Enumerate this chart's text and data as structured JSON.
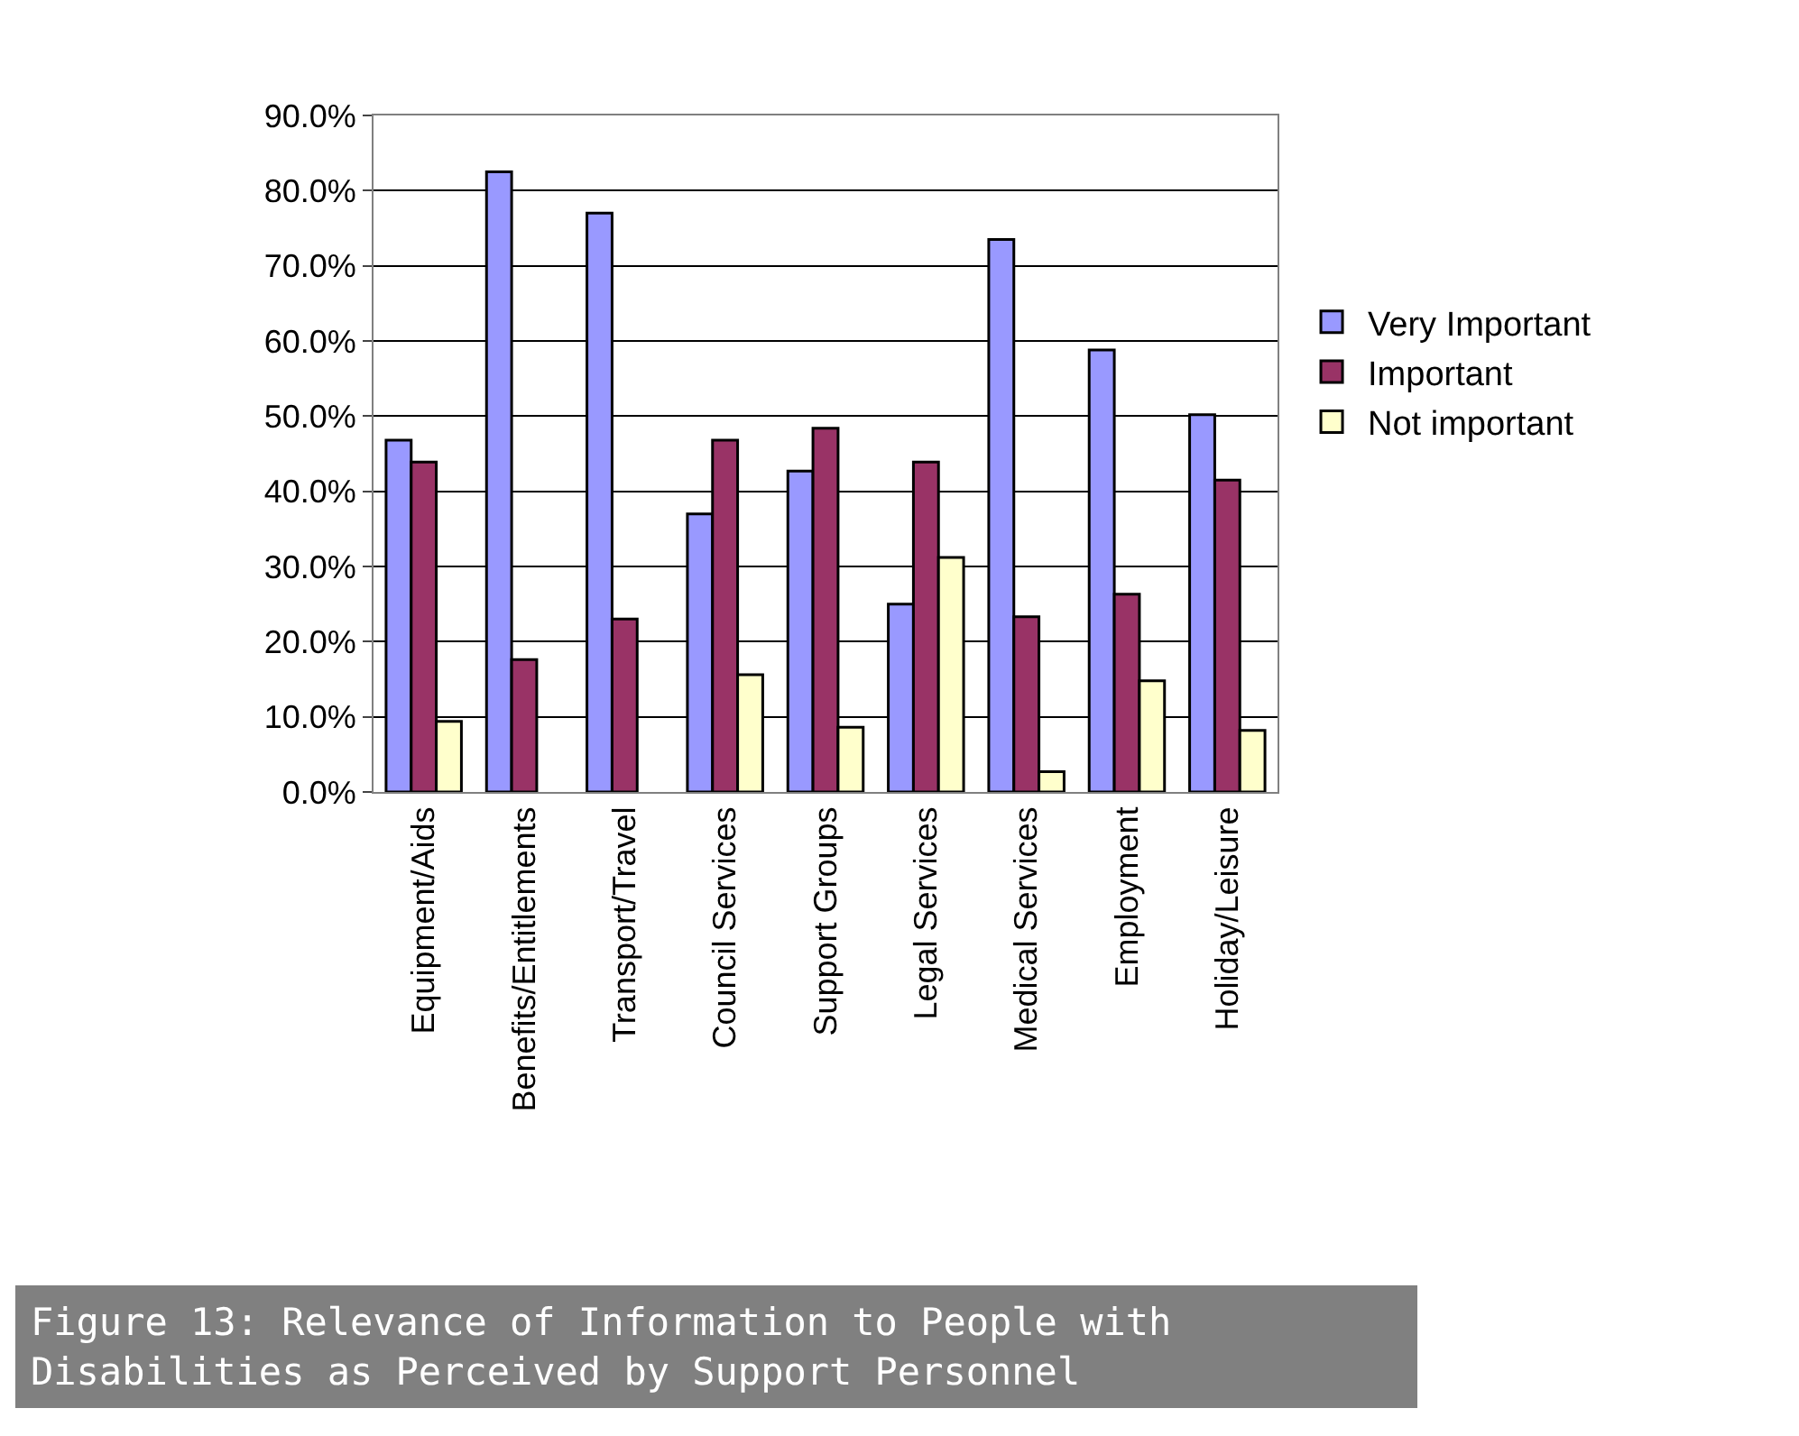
{
  "chart_data": {
    "type": "bar",
    "title": "Figure 13: Relevance of Information to People with\nDisabilities as Perceived by Support Personnel",
    "categories": [
      "Equipment/Aids",
      "Benefits/Entitlements",
      "Transport/Travel",
      "Council Services",
      "Support Groups",
      "Legal Services",
      "Medical Services",
      "Employment",
      "Holiday/Leisure"
    ],
    "series": [
      {
        "name": "Very Important",
        "color": "#9999ff",
        "values": [
          46.8,
          82.5,
          77.0,
          37.0,
          42.7,
          25.0,
          73.5,
          58.8,
          50.2
        ]
      },
      {
        "name": "Important",
        "color": "#993366",
        "values": [
          43.9,
          17.6,
          23.0,
          46.8,
          48.4,
          43.9,
          23.3,
          26.3,
          41.5
        ]
      },
      {
        "name": "Not important",
        "color": "#ffffcc",
        "values": [
          9.4,
          null,
          null,
          15.6,
          8.6,
          31.2,
          2.7,
          14.8,
          8.2
        ]
      }
    ],
    "ylim": [
      0,
      90
    ],
    "yticks": [
      {
        "value": 0,
        "label": "0.0%"
      },
      {
        "value": 10,
        "label": "10.0%"
      },
      {
        "value": 20,
        "label": "20.0%"
      },
      {
        "value": 30,
        "label": "30.0%"
      },
      {
        "value": 40,
        "label": "40.0%"
      },
      {
        "value": 50,
        "label": "50.0%"
      },
      {
        "value": 60,
        "label": "60.0%"
      },
      {
        "value": 70,
        "label": "70.0%"
      },
      {
        "value": 80,
        "label": "80.0%"
      },
      {
        "value": 90,
        "label": "90.0%"
      }
    ],
    "grid": "y",
    "legend": "right"
  }
}
